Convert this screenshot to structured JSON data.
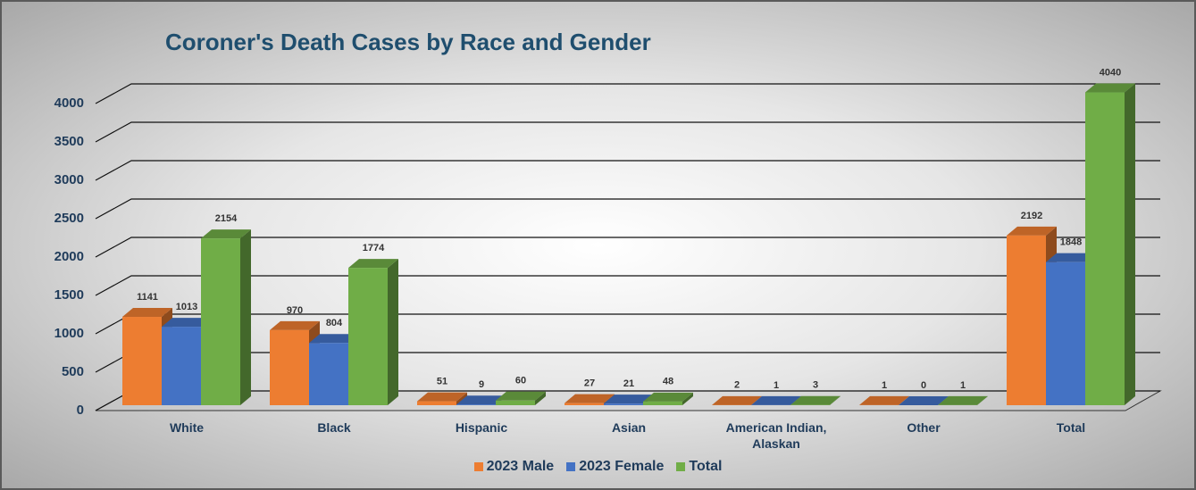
{
  "chart_data": {
    "type": "bar3d",
    "title": "Coroner's Death Cases by Race and Gender",
    "categories": [
      "White",
      "Black",
      "Hispanic",
      "Asian",
      "American Indian, Alaskan",
      "Other",
      "Total"
    ],
    "series": [
      {
        "name": "2023 Male",
        "color": "#ed7d31",
        "values": [
          1141,
          970,
          51,
          27,
          2,
          1,
          2192
        ]
      },
      {
        "name": "2023 Female",
        "color": "#4472c4",
        "values": [
          1013,
          804,
          9,
          21,
          1,
          0,
          1848
        ]
      },
      {
        "name": "Total",
        "color": "#70ad47",
        "values": [
          2154,
          1774,
          60,
          48,
          3,
          1,
          4040
        ]
      }
    ],
    "ylim": [
      0,
      4000
    ],
    "yticks": [
      0,
      500,
      1000,
      1500,
      2000,
      2500,
      3000,
      3500,
      4000
    ],
    "grid": true,
    "legend": "bottom"
  }
}
